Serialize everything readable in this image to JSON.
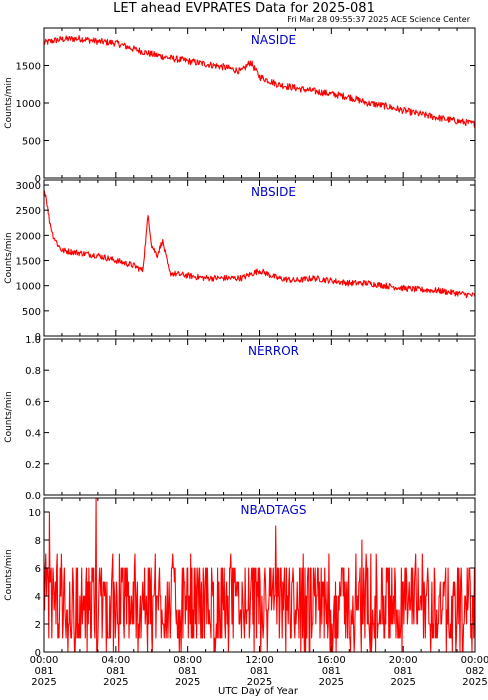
{
  "header": {
    "title": "LET ahead EVPRATES Data for 2025-081",
    "timestamp": "Fri Mar 28 09:55:37 2025 ACE Science Center"
  },
  "xaxis": {
    "label": "UTC Day of Year",
    "ticks": [
      {
        "time": "00:00",
        "doy": "081",
        "year": "2025"
      },
      {
        "time": "04:00",
        "doy": "081",
        "year": "2025"
      },
      {
        "time": "08:00",
        "doy": "081",
        "year": "2025"
      },
      {
        "time": "12:00",
        "doy": "081",
        "year": "2025"
      },
      {
        "time": "16:00",
        "doy": "081",
        "year": "2025"
      },
      {
        "time": "20:00",
        "doy": "081",
        "year": "2025"
      },
      {
        "time": "00:00",
        "doy": "082",
        "year": "2025"
      }
    ]
  },
  "colors": {
    "line": "#ff0000",
    "panel_title": "#0000cc",
    "axes": "#000000"
  },
  "chart_data": [
    {
      "type": "line",
      "panel_title": "NASIDE",
      "ylabel": "Counts/min",
      "xlim": [
        0,
        24
      ],
      "ylim": [
        0,
        2000
      ],
      "yticks": [
        0,
        500,
        1000,
        1500
      ],
      "noise": 45,
      "x": [
        0,
        0.5,
        1,
        2,
        3,
        4,
        5,
        6,
        7,
        8,
        9,
        10,
        11,
        11.5,
        12,
        13,
        14,
        15,
        16,
        17,
        18,
        19,
        20,
        21,
        22,
        23,
        24
      ],
      "y": [
        1800,
        1830,
        1850,
        1860,
        1820,
        1800,
        1720,
        1650,
        1600,
        1560,
        1520,
        1480,
        1420,
        1550,
        1350,
        1250,
        1200,
        1160,
        1120,
        1080,
        1000,
        960,
        900,
        850,
        800,
        760,
        720
      ]
    },
    {
      "type": "line",
      "panel_title": "NBSIDE",
      "ylabel": "Counts/min",
      "xlim": [
        0,
        24
      ],
      "ylim": [
        0,
        3100
      ],
      "yticks": [
        0,
        500,
        1000,
        1500,
        2000,
        2500,
        3000
      ],
      "noise": 60,
      "x": [
        0,
        0.1,
        0.3,
        0.5,
        0.8,
        1,
        2,
        3,
        4,
        5,
        5.5,
        5.8,
        6,
        6.3,
        6.6,
        7,
        8,
        9,
        10,
        11,
        12,
        13,
        14,
        15,
        16,
        17,
        18,
        19,
        20,
        21,
        22,
        23,
        24
      ],
      "y": [
        2900,
        2800,
        2300,
        2000,
        1800,
        1700,
        1650,
        1600,
        1500,
        1400,
        1300,
        2400,
        1800,
        1600,
        1900,
        1250,
        1200,
        1150,
        1150,
        1150,
        1300,
        1150,
        1100,
        1150,
        1100,
        1050,
        1050,
        1000,
        950,
        920,
        900,
        850,
        800
      ]
    },
    {
      "type": "line",
      "panel_title": "NERROR",
      "ylabel": "Counts/min",
      "xlim": [
        0,
        24
      ],
      "ylim": [
        0,
        1
      ],
      "yticks": [
        "0.0",
        "0.2",
        "0.4",
        "0.6",
        "0.8",
        "1.0"
      ],
      "x": [],
      "y": []
    },
    {
      "type": "line",
      "panel_title": "NBADTAGS",
      "ylabel": "Counts/min",
      "xlim": [
        0,
        24
      ],
      "ylim": [
        0,
        11
      ],
      "yticks": [
        0,
        2,
        4,
        6,
        8,
        10
      ],
      "typical_range": [
        1,
        6
      ],
      "spikes": [
        {
          "x": 0.3,
          "y": 10
        },
        {
          "x": 2.9,
          "y": 11
        },
        {
          "x": 12.9,
          "y": 9
        },
        {
          "x": 17.7,
          "y": 8
        },
        {
          "x": 23.2,
          "y": 5
        }
      ]
    }
  ]
}
